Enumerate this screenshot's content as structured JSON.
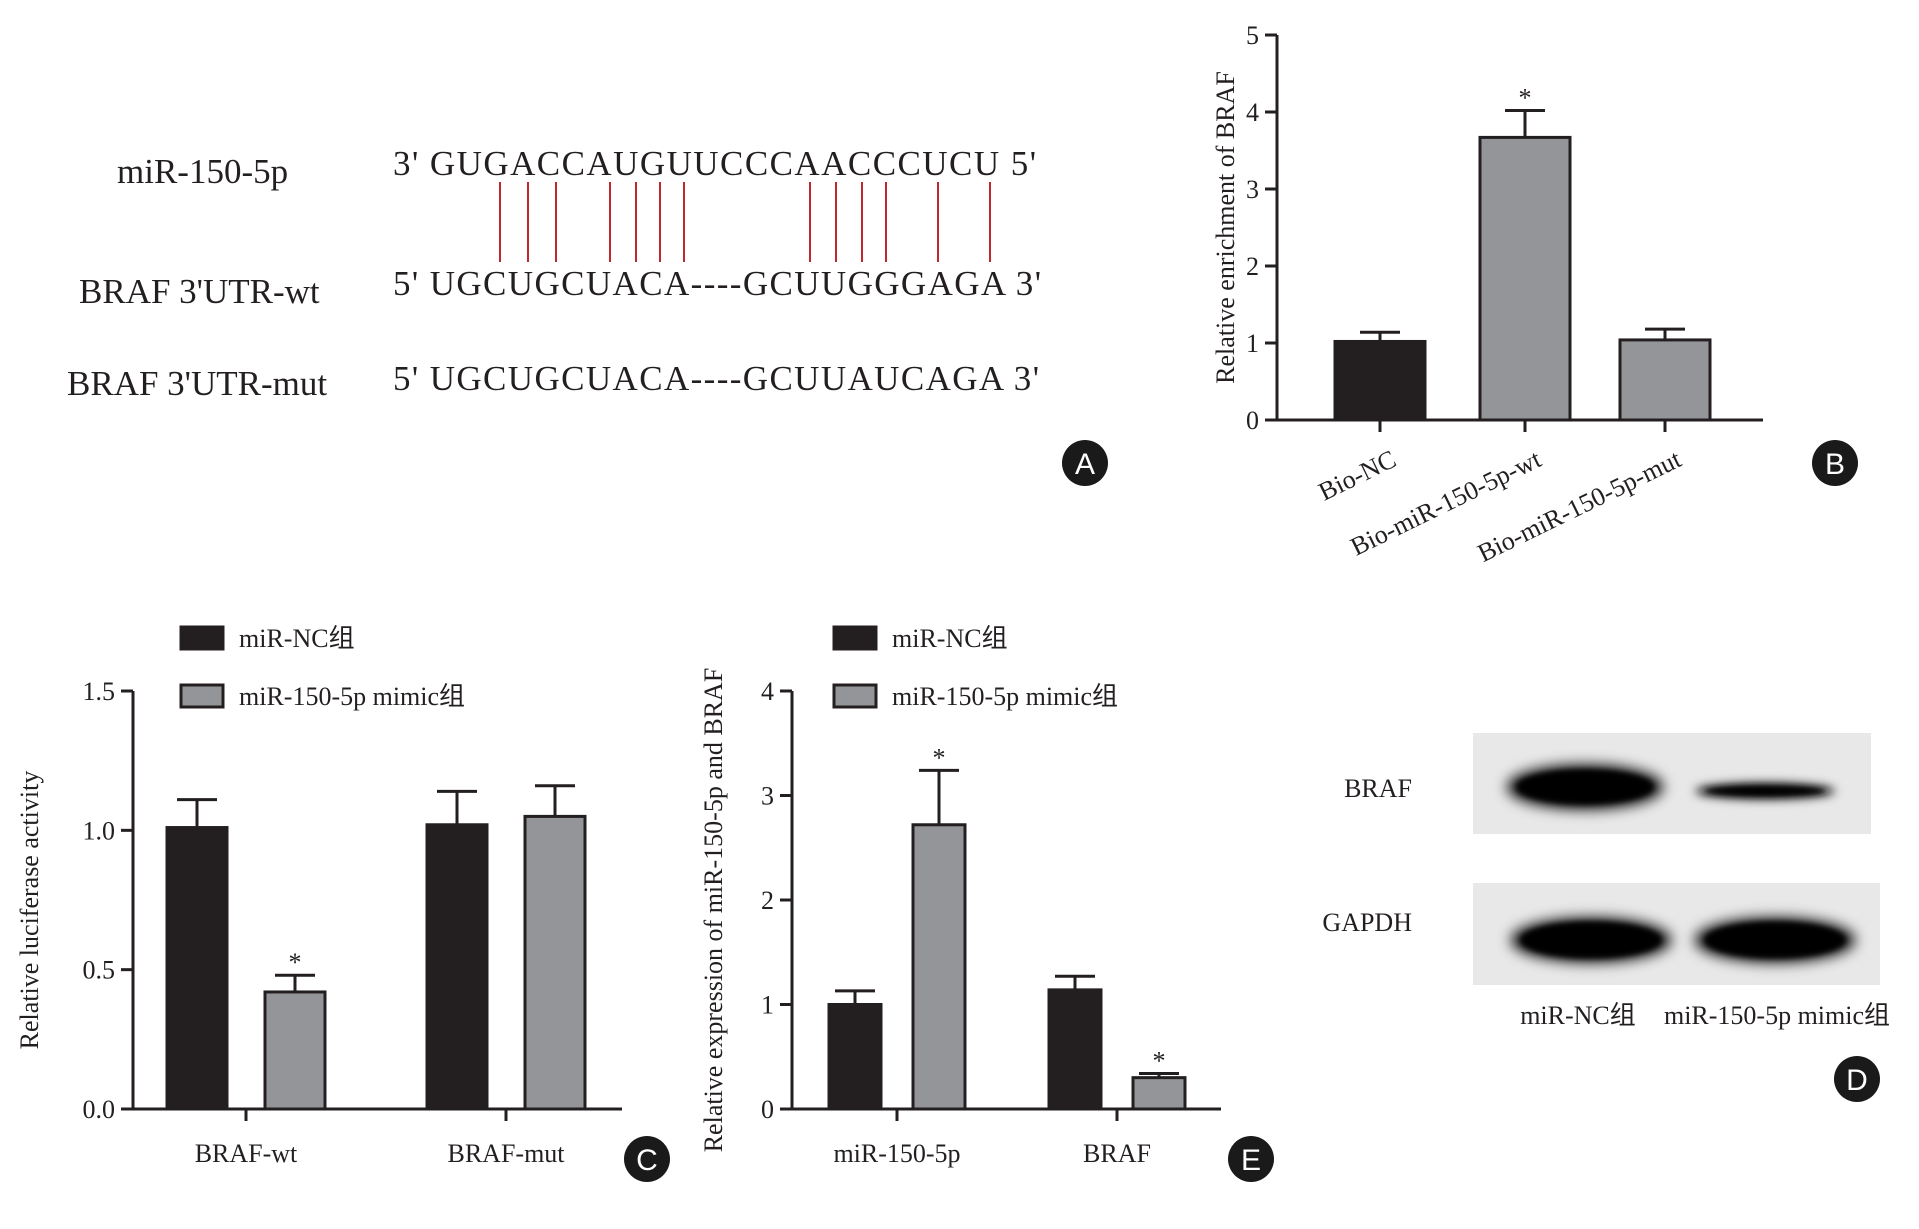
{
  "colors": {
    "dark_bar": "#231f20",
    "gray_bar": "#939598",
    "pairing_line": "#c1272d",
    "panel_badge": "#1a1a1a"
  },
  "panel_a": {
    "letter": "A",
    "rows": [
      {
        "label": "miR-150-5p",
        "sequence": "3'  GUGACCAUGUUCCCAACCCUCU 5'"
      },
      {
        "label": "BRAF 3'UTR-wt",
        "sequence": "5'  UGCUGCUACA----GCUUGGGAGA 3'"
      },
      {
        "label": "BRAF 3'UTR-mut",
        "sequence": "5'  UGCUGCUACA----GCUUAUCAGA 3'"
      }
    ],
    "pairing_lines": 13
  },
  "panel_b": {
    "letter": "B"
  },
  "panel_c": {
    "letter": "C"
  },
  "panel_e": {
    "letter": "E"
  },
  "panel_d": {
    "letter": "D",
    "rows": [
      "BRAF",
      "GAPDH"
    ],
    "lanes": [
      "miR-NC组",
      "miR-150-5p mimic组"
    ]
  },
  "chart_data": [
    {
      "panel": "B",
      "type": "bar",
      "categories": [
        "Bio-NC",
        "Bio-miR-150-5p-wt",
        "Bio-miR-150-5p-mut"
      ],
      "values": [
        1.02,
        3.67,
        1.04
      ],
      "errors": [
        0.12,
        0.35,
        0.14
      ],
      "significance": [
        "",
        "*",
        ""
      ],
      "bar_colors": [
        "#231f20",
        "#939598",
        "#939598"
      ],
      "xlabel": "",
      "ylabel": "Relative enrichment of BRAF",
      "ylim": [
        0,
        5
      ],
      "yticks": [
        "0",
        "1",
        "2",
        "3",
        "4",
        "5"
      ],
      "grid": false
    },
    {
      "panel": "C",
      "type": "bar",
      "categories": [
        "BRAF-wt",
        "BRAF-mut"
      ],
      "series": [
        {
          "name": "miR-NC组",
          "values": [
            1.01,
            1.02
          ],
          "errors": [
            0.1,
            0.12
          ],
          "significance": [
            "",
            ""
          ]
        },
        {
          "name": "miR-150-5p mimic组",
          "values": [
            0.42,
            1.05
          ],
          "errors": [
            0.06,
            0.11
          ],
          "significance": [
            "*",
            ""
          ]
        }
      ],
      "xlabel": "",
      "ylabel": "Relative luciferase activity",
      "ylim": [
        0,
        1.5
      ],
      "yticks": [
        "0.0",
        "0.5",
        "1.0",
        "1.5"
      ],
      "legend_position": "top-left",
      "grid": false
    },
    {
      "panel": "E",
      "type": "bar",
      "categories": [
        "miR-150-5p",
        "BRAF"
      ],
      "series": [
        {
          "name": "miR-NC组",
          "values": [
            1.0,
            1.14
          ],
          "errors": [
            0.13,
            0.13
          ],
          "significance": [
            "",
            ""
          ]
        },
        {
          "name": "miR-150-5p mimic组",
          "values": [
            2.72,
            0.3
          ],
          "errors": [
            0.52,
            0.04
          ],
          "significance": [
            "*",
            "*"
          ]
        }
      ],
      "xlabel": "",
      "ylabel": "Relative expression of miR-150-5p and BRAF",
      "ylim": [
        0,
        4
      ],
      "yticks": [
        "0",
        "1",
        "2",
        "3",
        "4"
      ],
      "legend_position": "top-left",
      "grid": false
    }
  ]
}
